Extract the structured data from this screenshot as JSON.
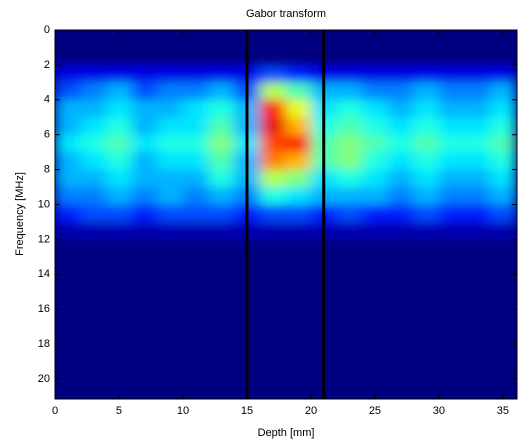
{
  "chart_data": {
    "type": "heatmap",
    "title": "Gabor transform",
    "x_label": "Depth [mm]",
    "y_label": "Frequency [MHz]",
    "colormap": "jet",
    "clim": [
      0,
      1
    ],
    "xbins": [
      0,
      2,
      4,
      6,
      8,
      10,
      12,
      14,
      16,
      18,
      20,
      22,
      24,
      26,
      28,
      30,
      32,
      34,
      36
    ],
    "ybins": [
      2,
      3,
      4,
      5,
      6,
      7,
      8,
      9,
      10,
      11,
      12
    ],
    "values": [
      [
        0.1,
        0.1,
        0.1,
        0.1,
        0.1,
        0.1,
        0.1,
        0.1,
        0.2,
        0.15,
        0.1,
        0.1,
        0.1,
        0.1,
        0.1,
        0.1,
        0.1,
        0.1
      ],
      [
        0.2,
        0.25,
        0.3,
        0.2,
        0.25,
        0.25,
        0.3,
        0.2,
        0.55,
        0.45,
        0.3,
        0.3,
        0.25,
        0.25,
        0.3,
        0.25,
        0.25,
        0.3
      ],
      [
        0.3,
        0.3,
        0.35,
        0.3,
        0.3,
        0.35,
        0.4,
        0.3,
        0.85,
        0.6,
        0.35,
        0.4,
        0.35,
        0.3,
        0.35,
        0.3,
        0.3,
        0.35
      ],
      [
        0.3,
        0.35,
        0.4,
        0.3,
        0.35,
        0.35,
        0.45,
        0.3,
        0.9,
        0.7,
        0.4,
        0.45,
        0.4,
        0.35,
        0.4,
        0.35,
        0.35,
        0.4
      ],
      [
        0.35,
        0.4,
        0.45,
        0.35,
        0.4,
        0.4,
        0.5,
        0.35,
        0.8,
        0.85,
        0.45,
        0.5,
        0.45,
        0.4,
        0.45,
        0.4,
        0.4,
        0.45
      ],
      [
        0.3,
        0.35,
        0.4,
        0.3,
        0.35,
        0.35,
        0.45,
        0.3,
        0.75,
        0.7,
        0.45,
        0.5,
        0.4,
        0.35,
        0.4,
        0.35,
        0.35,
        0.4
      ],
      [
        0.3,
        0.3,
        0.35,
        0.3,
        0.3,
        0.3,
        0.4,
        0.3,
        0.55,
        0.5,
        0.35,
        0.4,
        0.35,
        0.3,
        0.35,
        0.3,
        0.3,
        0.35
      ],
      [
        0.25,
        0.25,
        0.3,
        0.25,
        0.3,
        0.25,
        0.3,
        0.25,
        0.4,
        0.35,
        0.3,
        0.3,
        0.3,
        0.25,
        0.3,
        0.25,
        0.25,
        0.3
      ],
      [
        0.15,
        0.2,
        0.2,
        0.15,
        0.2,
        0.2,
        0.2,
        0.15,
        0.2,
        0.2,
        0.15,
        0.2,
        0.15,
        0.15,
        0.2,
        0.15,
        0.15,
        0.2
      ],
      [
        0.05,
        0.05,
        0.05,
        0.05,
        0.05,
        0.05,
        0.05,
        0.05,
        0.05,
        0.05,
        0.05,
        0.05,
        0.05,
        0.05,
        0.05,
        0.05,
        0.05,
        0.05
      ]
    ],
    "vlines": [
      15,
      21
    ],
    "vline_color": "#000000",
    "xlim": [
      0,
      36.1
    ],
    "ylim": [
      0,
      21.15
    ],
    "y_reversed": true,
    "xticks": [
      0,
      5,
      10,
      15,
      20,
      25,
      30,
      35
    ],
    "yticks": [
      0,
      2,
      4,
      6,
      8,
      10,
      12,
      14,
      16,
      18,
      20
    ]
  }
}
